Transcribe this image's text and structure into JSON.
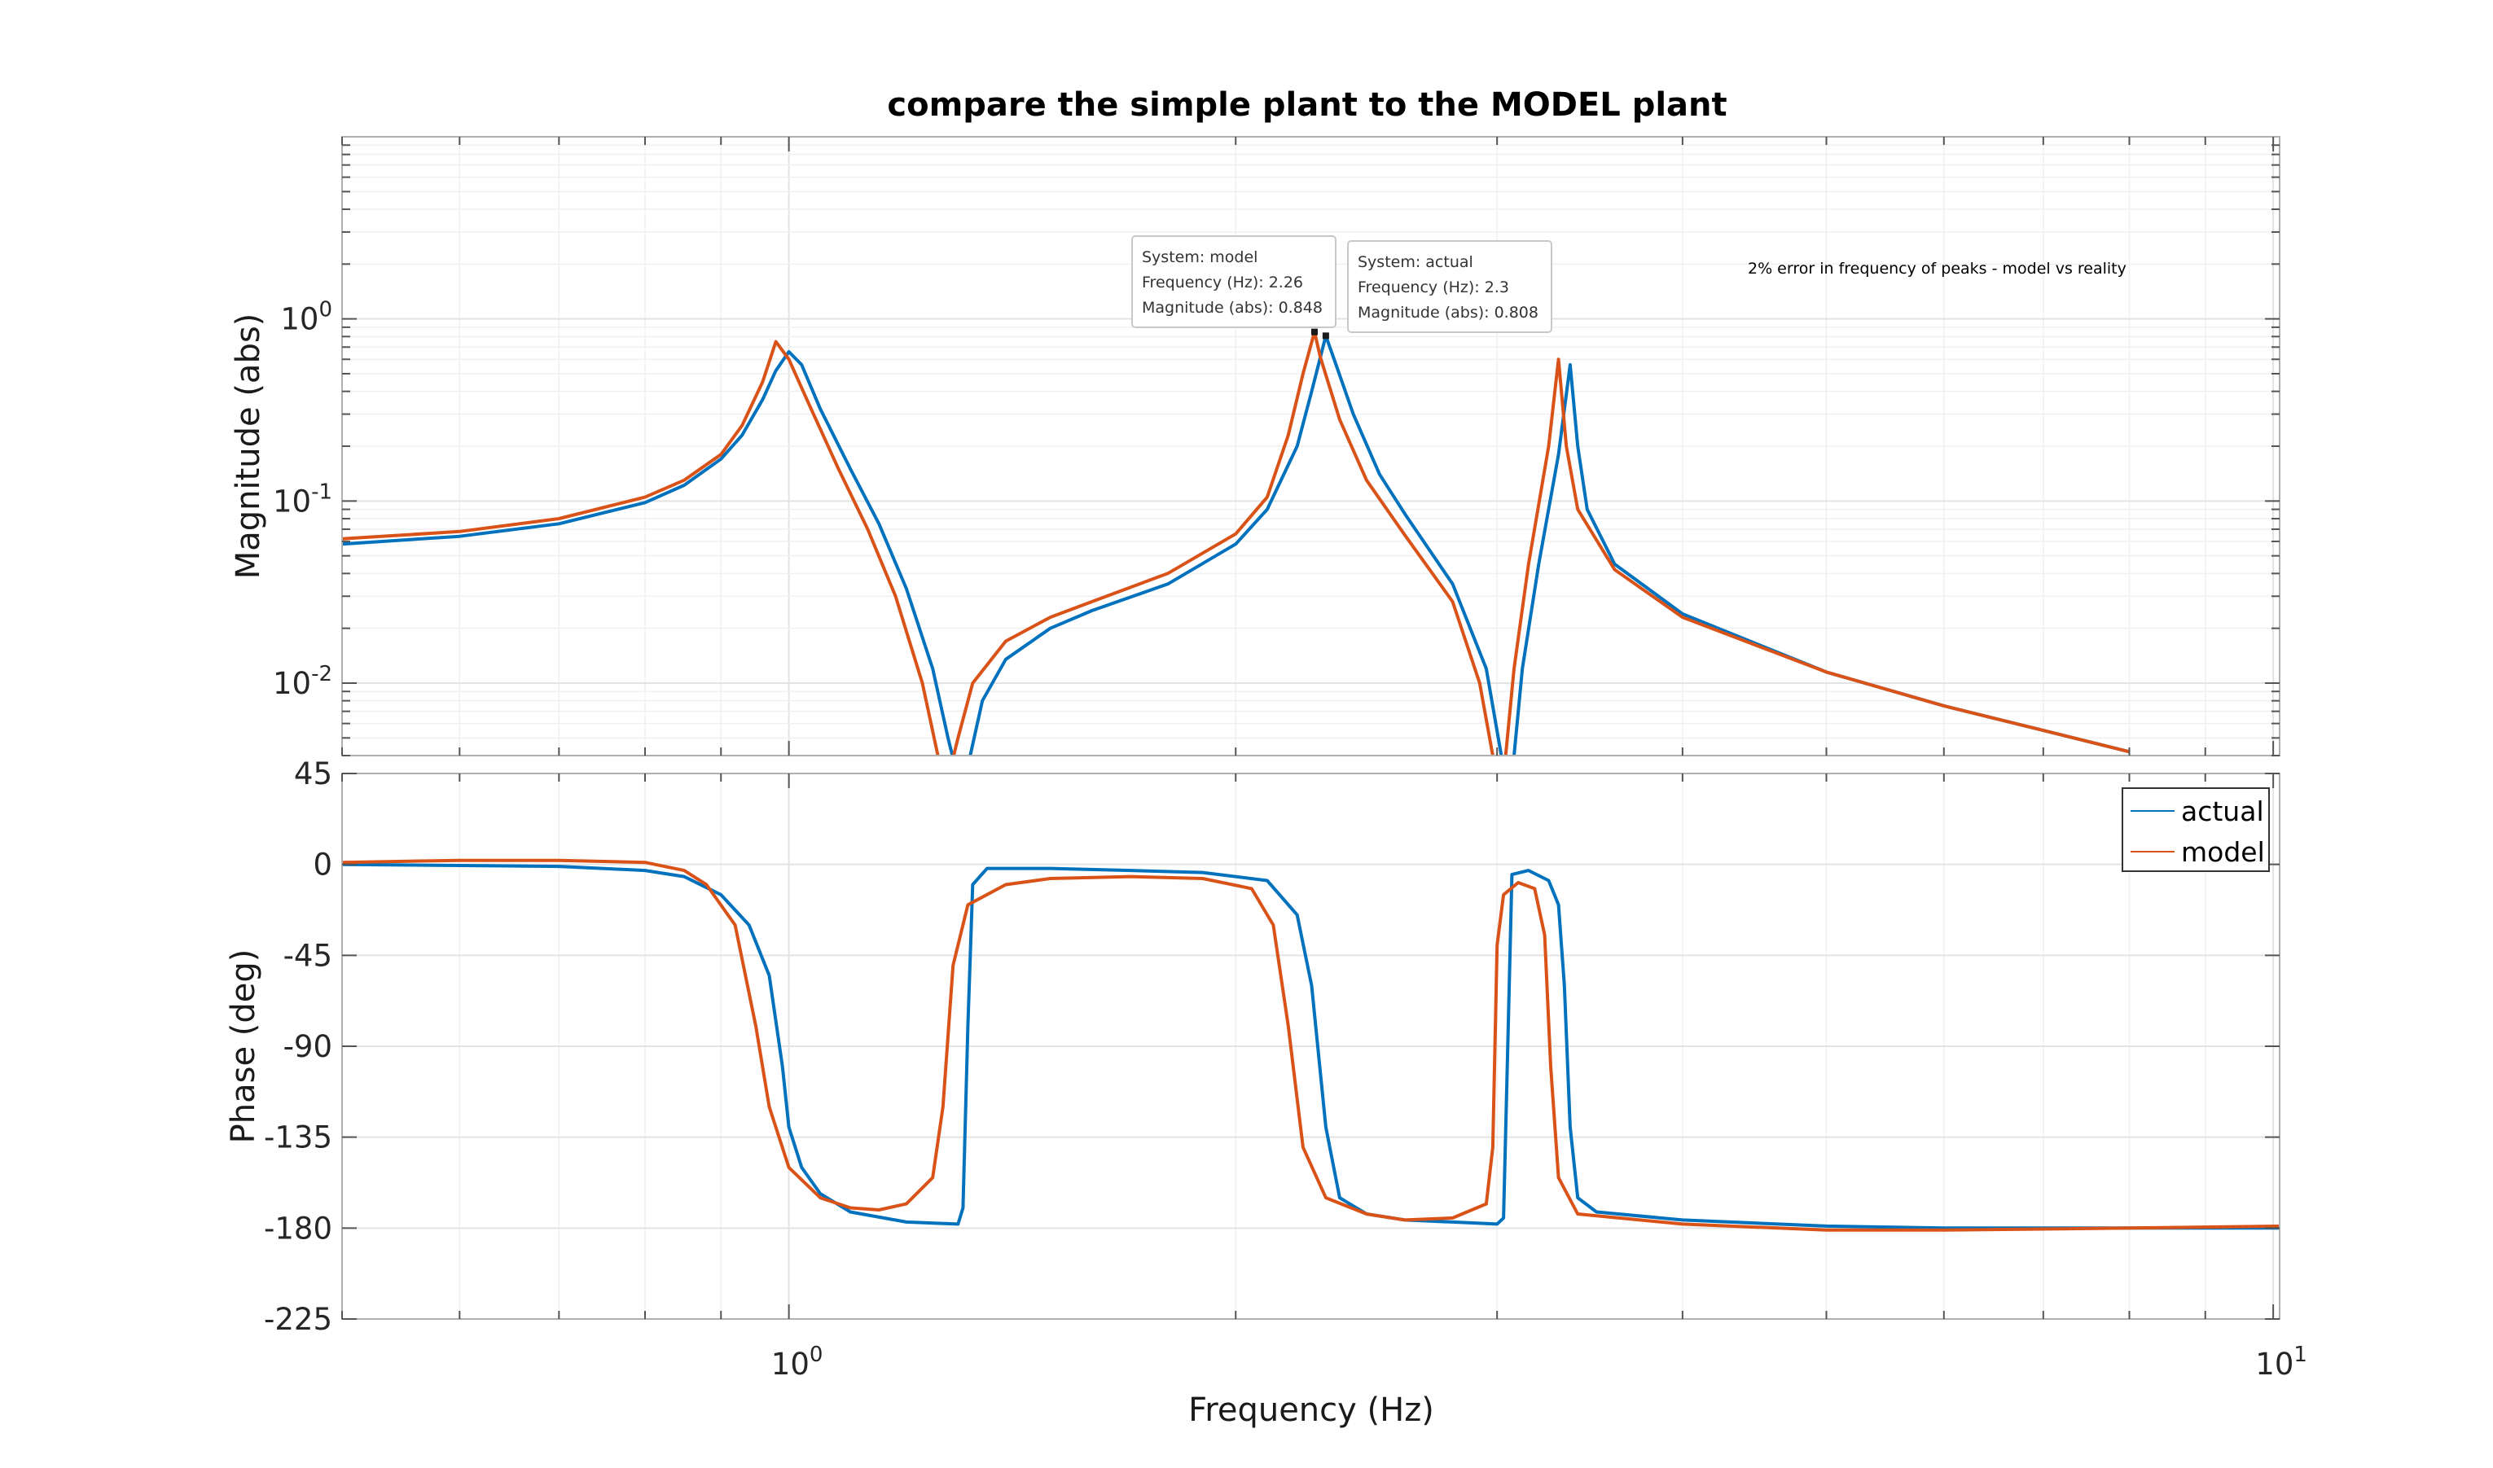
{
  "chart_data": {
    "type": "line",
    "title": "compare the simple plant to the MODEL plant",
    "xlabel": "Frequency  (Hz)",
    "xscale": "log",
    "xlim": [
      0.5,
      10.1
    ],
    "xticks": [
      {
        "value": 1,
        "base": "10",
        "exp": "0"
      },
      {
        "value": 10,
        "base": "10",
        "exp": "1"
      }
    ],
    "grid": true,
    "colors": {
      "actual": "#0072BD",
      "model": "#D95319"
    },
    "panels": [
      {
        "id": "magnitude",
        "ylabel": "Magnitude (abs)",
        "yscale": "log",
        "ylim": [
          0.004,
          10
        ],
        "yticks": [
          {
            "value": 1,
            "base": "10",
            "exp": "0"
          },
          {
            "value": 0.1,
            "base": "10",
            "exp": "-1"
          },
          {
            "value": 0.01,
            "base": "10",
            "exp": "-2"
          }
        ],
        "series": [
          {
            "name": "actual",
            "points": [
              [
                0.5,
                0.058
              ],
              [
                0.6,
                0.064
              ],
              [
                0.7,
                0.075
              ],
              [
                0.8,
                0.098
              ],
              [
                0.85,
                0.122
              ],
              [
                0.9,
                0.17
              ],
              [
                0.93,
                0.23
              ],
              [
                0.96,
                0.36
              ],
              [
                0.98,
                0.52
              ],
              [
                1.0,
                0.66
              ],
              [
                1.02,
                0.56
              ],
              [
                1.05,
                0.32
              ],
              [
                1.1,
                0.15
              ],
              [
                1.15,
                0.075
              ],
              [
                1.2,
                0.033
              ],
              [
                1.25,
                0.012
              ],
              [
                1.28,
                0.005
              ],
              [
                1.3,
                0.003
              ],
              [
                1.32,
                0.0035
              ],
              [
                1.35,
                0.008
              ],
              [
                1.4,
                0.0135
              ],
              [
                1.5,
                0.02
              ],
              [
                1.6,
                0.025
              ],
              [
                1.8,
                0.035
              ],
              [
                2.0,
                0.058
              ],
              [
                2.1,
                0.09
              ],
              [
                2.2,
                0.2
              ],
              [
                2.25,
                0.4
              ],
              [
                2.3,
                0.808
              ],
              [
                2.33,
                0.6
              ],
              [
                2.4,
                0.3
              ],
              [
                2.5,
                0.14
              ],
              [
                2.6,
                0.085
              ],
              [
                2.8,
                0.035
              ],
              [
                2.95,
                0.012
              ],
              [
                3.02,
                0.004
              ],
              [
                3.05,
                0.0025
              ],
              [
                3.08,
                0.004
              ],
              [
                3.12,
                0.012
              ],
              [
                3.2,
                0.045
              ],
              [
                3.3,
                0.18
              ],
              [
                3.36,
                0.56
              ],
              [
                3.4,
                0.2
              ],
              [
                3.45,
                0.09
              ],
              [
                3.6,
                0.045
              ],
              [
                4.0,
                0.024
              ],
              [
                5.0,
                0.0115
              ],
              [
                6.0,
                0.0075
              ],
              [
                7.0,
                0.0055
              ],
              [
                8.0,
                0.0042
              ]
            ]
          },
          {
            "name": "model",
            "points": [
              [
                0.5,
                0.062
              ],
              [
                0.6,
                0.068
              ],
              [
                0.7,
                0.08
              ],
              [
                0.8,
                0.105
              ],
              [
                0.85,
                0.13
              ],
              [
                0.9,
                0.18
              ],
              [
                0.93,
                0.26
              ],
              [
                0.96,
                0.45
              ],
              [
                0.98,
                0.75
              ],
              [
                1.0,
                0.6
              ],
              [
                1.03,
                0.35
              ],
              [
                1.08,
                0.15
              ],
              [
                1.13,
                0.07
              ],
              [
                1.18,
                0.03
              ],
              [
                1.23,
                0.01
              ],
              [
                1.26,
                0.004
              ],
              [
                1.28,
                0.003
              ],
              [
                1.3,
                0.005
              ],
              [
                1.33,
                0.01
              ],
              [
                1.4,
                0.017
              ],
              [
                1.5,
                0.023
              ],
              [
                1.6,
                0.028
              ],
              [
                1.8,
                0.04
              ],
              [
                2.0,
                0.066
              ],
              [
                2.1,
                0.105
              ],
              [
                2.17,
                0.23
              ],
              [
                2.22,
                0.5
              ],
              [
                2.26,
                0.848
              ],
              [
                2.28,
                0.62
              ],
              [
                2.35,
                0.28
              ],
              [
                2.45,
                0.13
              ],
              [
                2.6,
                0.065
              ],
              [
                2.8,
                0.028
              ],
              [
                2.92,
                0.01
              ],
              [
                2.98,
                0.004
              ],
              [
                3.0,
                0.0025
              ],
              [
                3.04,
                0.004
              ],
              [
                3.08,
                0.012
              ],
              [
                3.15,
                0.045
              ],
              [
                3.25,
                0.2
              ],
              [
                3.3,
                0.6
              ],
              [
                3.34,
                0.2
              ],
              [
                3.4,
                0.09
              ],
              [
                3.6,
                0.042
              ],
              [
                4.0,
                0.023
              ],
              [
                5.0,
                0.0115
              ],
              [
                6.0,
                0.0075
              ],
              [
                7.0,
                0.0055
              ],
              [
                8.0,
                0.0042
              ]
            ]
          }
        ]
      },
      {
        "id": "phase",
        "ylabel": "Phase (deg)",
        "yscale": "linear",
        "ylim": [
          -225,
          45
        ],
        "yticks": [
          45,
          0,
          -45,
          -90,
          -135,
          -180,
          -225
        ],
        "series": [
          {
            "name": "actual",
            "points": [
              [
                0.5,
                0
              ],
              [
                0.7,
                -1
              ],
              [
                0.8,
                -3
              ],
              [
                0.85,
                -6
              ],
              [
                0.9,
                -15
              ],
              [
                0.94,
                -30
              ],
              [
                0.97,
                -55
              ],
              [
                0.99,
                -100
              ],
              [
                1.0,
                -130
              ],
              [
                1.02,
                -150
              ],
              [
                1.05,
                -163
              ],
              [
                1.1,
                -172
              ],
              [
                1.2,
                -177
              ],
              [
                1.3,
                -178
              ],
              [
                1.31,
                -170
              ],
              [
                1.32,
                -80
              ],
              [
                1.33,
                -10
              ],
              [
                1.36,
                -2
              ],
              [
                1.5,
                -2
              ],
              [
                1.7,
                -3
              ],
              [
                1.9,
                -4
              ],
              [
                2.1,
                -8
              ],
              [
                2.2,
                -25
              ],
              [
                2.25,
                -60
              ],
              [
                2.3,
                -130
              ],
              [
                2.35,
                -165
              ],
              [
                2.45,
                -173
              ],
              [
                2.6,
                -176
              ],
              [
                2.8,
                -177
              ],
              [
                3.0,
                -178
              ],
              [
                3.03,
                -175
              ],
              [
                3.05,
                -90
              ],
              [
                3.07,
                -5
              ],
              [
                3.15,
                -3
              ],
              [
                3.25,
                -8
              ],
              [
                3.3,
                -20
              ],
              [
                3.33,
                -60
              ],
              [
                3.36,
                -130
              ],
              [
                3.4,
                -165
              ],
              [
                3.5,
                -172
              ],
              [
                4.0,
                -176
              ],
              [
                5.0,
                -179
              ],
              [
                6.0,
                -180
              ],
              [
                8.0,
                -180
              ],
              [
                10.1,
                -180
              ]
            ]
          },
          {
            "name": "model",
            "points": [
              [
                0.5,
                1
              ],
              [
                0.6,
                2
              ],
              [
                0.7,
                2
              ],
              [
                0.8,
                1
              ],
              [
                0.85,
                -3
              ],
              [
                0.88,
                -10
              ],
              [
                0.92,
                -30
              ],
              [
                0.95,
                -80
              ],
              [
                0.97,
                -120
              ],
              [
                1.0,
                -150
              ],
              [
                1.05,
                -165
              ],
              [
                1.1,
                -170
              ],
              [
                1.15,
                -171
              ],
              [
                1.2,
                -168
              ],
              [
                1.25,
                -155
              ],
              [
                1.27,
                -120
              ],
              [
                1.29,
                -50
              ],
              [
                1.32,
                -20
              ],
              [
                1.4,
                -10
              ],
              [
                1.5,
                -7
              ],
              [
                1.7,
                -6
              ],
              [
                1.9,
                -7
              ],
              [
                2.05,
                -12
              ],
              [
                2.12,
                -30
              ],
              [
                2.17,
                -80
              ],
              [
                2.22,
                -140
              ],
              [
                2.3,
                -165
              ],
              [
                2.45,
                -173
              ],
              [
                2.6,
                -176
              ],
              [
                2.8,
                -175
              ],
              [
                2.95,
                -168
              ],
              [
                2.98,
                -140
              ],
              [
                3.0,
                -40
              ],
              [
                3.03,
                -15
              ],
              [
                3.1,
                -9
              ],
              [
                3.18,
                -12
              ],
              [
                3.23,
                -35
              ],
              [
                3.26,
                -100
              ],
              [
                3.3,
                -155
              ],
              [
                3.4,
                -173
              ],
              [
                4.0,
                -178
              ],
              [
                5.0,
                -181
              ],
              [
                6.0,
                -181
              ],
              [
                8.0,
                -180
              ],
              [
                10.1,
                -179
              ]
            ]
          }
        ]
      }
    ],
    "legend": {
      "placement": "top-right",
      "entries": [
        "actual",
        "model"
      ]
    },
    "datatips": [
      {
        "series": "model",
        "lines": [
          "System: model",
          "Frequency (Hz): 2.26",
          "Magnitude (abs): 0.848"
        ],
        "x": 2.26,
        "y": 0.848
      },
      {
        "series": "actual",
        "lines": [
          "System: actual",
          "Frequency (Hz): 2.3",
          "Magnitude (abs): 0.808"
        ],
        "x": 2.3,
        "y": 0.808
      }
    ],
    "annotation": "2% error in frequency of peaks - model vs reality"
  }
}
